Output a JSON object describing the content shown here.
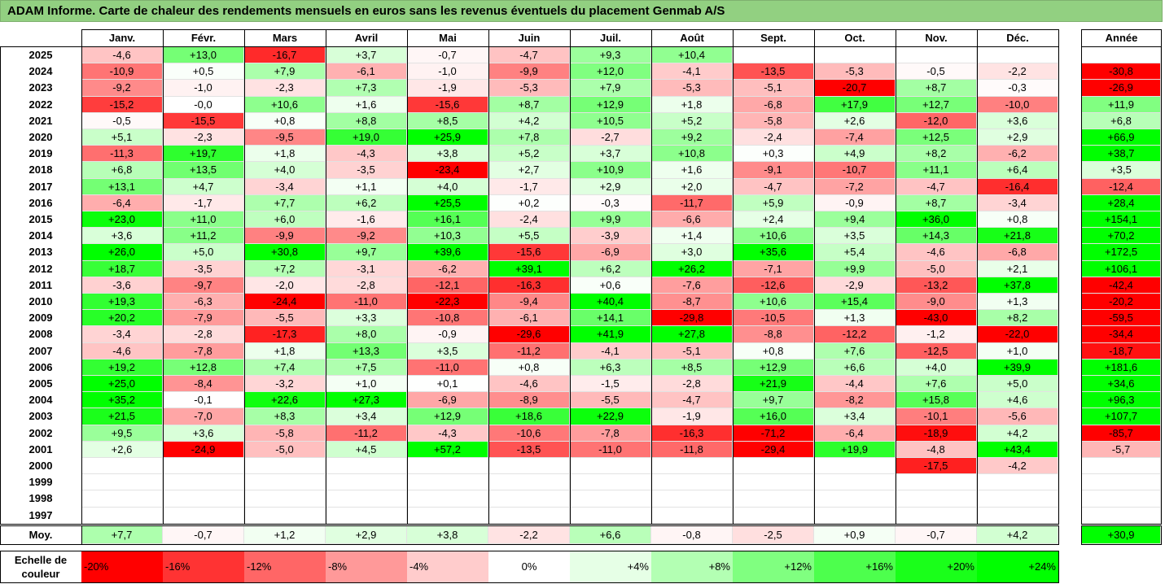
{
  "title": "ADAM Informe. Carte de chaleur des rendements mensuels en euros sans les revenus éventuels du placement Genmab A/S",
  "chart_data": {
    "type": "heatmap",
    "columns": [
      "Janv.",
      "Févr.",
      "Mars",
      "Avril",
      "Mai",
      "Juin",
      "Juil.",
      "Août",
      "Sept.",
      "Oct.",
      "Nov.",
      "Déc."
    ],
    "year_header": "Année",
    "rows": [
      {
        "year": "2025",
        "values": [
          "-4,6",
          "+13,0",
          "-16,7",
          "+3,7",
          "-0,7",
          "-4,7",
          "+9,3",
          "+10,4",
          "",
          "",
          "",
          ""
        ],
        "annual": ""
      },
      {
        "year": "2024",
        "values": [
          "-10,9",
          "+0,5",
          "+7,9",
          "-6,1",
          "-1,0",
          "-9,9",
          "+12,0",
          "-4,1",
          "-13,5",
          "-5,3",
          "-0,5",
          "-2,2"
        ],
        "annual": "-30,8"
      },
      {
        "year": "2023",
        "values": [
          "-9,2",
          "-1,0",
          "-2,3",
          "+7,3",
          "-1,9",
          "-5,3",
          "+7,9",
          "-5,3",
          "-5,1",
          "-20,7",
          "+8,7",
          "-0,3"
        ],
        "annual": "-26,9"
      },
      {
        "year": "2022",
        "values": [
          "-15,2",
          "-0,0",
          "+10,6",
          "+1,6",
          "-15,6",
          "+8,7",
          "+12,9",
          "+1,8",
          "-6,8",
          "+17,9",
          "+12,7",
          "-10,0"
        ],
        "annual": "+11,9"
      },
      {
        "year": "2021",
        "values": [
          "-0,5",
          "-15,5",
          "+0,8",
          "+8,8",
          "+8,5",
          "+4,2",
          "+10,5",
          "+5,2",
          "-5,8",
          "+2,6",
          "-12,0",
          "+3,6"
        ],
        "annual": "+6,8"
      },
      {
        "year": "2020",
        "values": [
          "+5,1",
          "-2,3",
          "-9,5",
          "+19,0",
          "+25,9",
          "+7,8",
          "-2,7",
          "+9,2",
          "-2,4",
          "-7,4",
          "+12,5",
          "+2,9"
        ],
        "annual": "+66,9"
      },
      {
        "year": "2019",
        "values": [
          "-11,3",
          "+19,7",
          "+1,8",
          "-4,3",
          "+3,8",
          "+5,2",
          "+3,7",
          "+10,8",
          "+0,3",
          "+4,9",
          "+8,2",
          "-6,2"
        ],
        "annual": "+38,7"
      },
      {
        "year": "2018",
        "values": [
          "+6,8",
          "+13,5",
          "+4,0",
          "-3,5",
          "-23,4",
          "+2,7",
          "+10,9",
          "+1,6",
          "-9,1",
          "-10,7",
          "+11,1",
          "+6,4"
        ],
        "annual": "+3,5"
      },
      {
        "year": "2017",
        "values": [
          "+13,1",
          "+4,7",
          "-3,4",
          "+1,1",
          "+4,0",
          "-1,7",
          "+2,9",
          "+2,0",
          "-4,7",
          "-7,2",
          "-4,7",
          "-16,4"
        ],
        "annual": "-12,4"
      },
      {
        "year": "2016",
        "values": [
          "-6,4",
          "-1,7",
          "+7,7",
          "+6,2",
          "+25,5",
          "+0,2",
          "-0,3",
          "-11,7",
          "+5,9",
          "-0,9",
          "+8,7",
          "-3,4"
        ],
        "annual": "+28,4"
      },
      {
        "year": "2015",
        "values": [
          "+23,0",
          "+11,0",
          "+6,0",
          "-1,6",
          "+16,1",
          "-2,4",
          "+9,9",
          "-6,6",
          "+2,4",
          "+9,4",
          "+36,0",
          "+0,8"
        ],
        "annual": "+154,1"
      },
      {
        "year": "2014",
        "values": [
          "+3,6",
          "+11,2",
          "-9,9",
          "-9,2",
          "+10,3",
          "+5,5",
          "-3,9",
          "+1,4",
          "+10,6",
          "+3,5",
          "+14,3",
          "+21,8"
        ],
        "annual": "+70,2"
      },
      {
        "year": "2013",
        "values": [
          "+26,0",
          "+5,0",
          "+30,8",
          "+9,7",
          "+39,6",
          "-15,6",
          "-6,9",
          "+3,0",
          "+35,6",
          "+5,4",
          "-4,6",
          "-6,8"
        ],
        "annual": "+172,5"
      },
      {
        "year": "2012",
        "values": [
          "+18,7",
          "-3,5",
          "+7,2",
          "-3,1",
          "-6,2",
          "+39,1",
          "+6,2",
          "+26,2",
          "-7,1",
          "+9,9",
          "-5,0",
          "+2,1"
        ],
        "annual": "+106,1"
      },
      {
        "year": "2011",
        "values": [
          "-3,6",
          "-9,7",
          "-2,0",
          "-2,8",
          "-12,1",
          "-16,3",
          "+0,6",
          "-7,6",
          "-12,6",
          "-2,9",
          "-13,2",
          "+37,8"
        ],
        "annual": "-42,4"
      },
      {
        "year": "2010",
        "values": [
          "+19,3",
          "-6,3",
          "-24,4",
          "-11,0",
          "-22,3",
          "-9,4",
          "+40,4",
          "-8,7",
          "+10,6",
          "+15,4",
          "-9,0",
          "+1,3"
        ],
        "annual": "-20,2"
      },
      {
        "year": "2009",
        "values": [
          "+20,2",
          "-7,9",
          "-5,5",
          "+3,3",
          "-10,8",
          "-6,1",
          "+14,1",
          "-29,8",
          "-10,5",
          "+1,3",
          "-43,0",
          "+8,2"
        ],
        "annual": "-59,5"
      },
      {
        "year": "2008",
        "values": [
          "-3,4",
          "-2,8",
          "-17,3",
          "+8,0",
          "-0,9",
          "-29,6",
          "+41,9",
          "+27,8",
          "-8,8",
          "-12,2",
          "-1,2",
          "-22,0"
        ],
        "annual": "-34,4"
      },
      {
        "year": "2007",
        "values": [
          "-4,6",
          "-7,8",
          "+1,8",
          "+13,3",
          "+3,5",
          "-11,2",
          "-4,1",
          "-5,1",
          "+0,8",
          "+7,6",
          "-12,5",
          "+1,0"
        ],
        "annual": "-18,7"
      },
      {
        "year": "2006",
        "values": [
          "+19,2",
          "+12,8",
          "+7,4",
          "+7,5",
          "-11,0",
          "+0,8",
          "+6,3",
          "+8,5",
          "+12,9",
          "+6,6",
          "+4,0",
          "+39,9"
        ],
        "annual": "+181,6"
      },
      {
        "year": "2005",
        "values": [
          "+25,0",
          "-8,4",
          "-3,2",
          "+1,0",
          "+0,1",
          "-4,6",
          "-1,5",
          "-2,8",
          "+21,9",
          "-4,4",
          "+7,6",
          "+5,0"
        ],
        "annual": "+34,6"
      },
      {
        "year": "2004",
        "values": [
          "+35,2",
          "-0,1",
          "+22,6",
          "+27,3",
          "-6,9",
          "-8,9",
          "-5,5",
          "-4,7",
          "+9,7",
          "-8,2",
          "+15,8",
          "+4,6"
        ],
        "annual": "+96,3"
      },
      {
        "year": "2003",
        "values": [
          "+21,5",
          "-7,0",
          "+8,3",
          "+3,4",
          "+12,9",
          "+18,6",
          "+22,9",
          "-1,9",
          "+16,0",
          "+3,4",
          "-10,1",
          "-5,6"
        ],
        "annual": "+107,7"
      },
      {
        "year": "2002",
        "values": [
          "+9,5",
          "+3,6",
          "-5,8",
          "-11,2",
          "-4,3",
          "-10,6",
          "-7,8",
          "-16,3",
          "-71,2",
          "-6,4",
          "-18,9",
          "+4,2"
        ],
        "annual": "-85,7"
      },
      {
        "year": "2001",
        "values": [
          "+2,6",
          "-24,9",
          "-5,0",
          "+4,5",
          "+57,2",
          "-13,5",
          "-11,0",
          "-11,8",
          "-29,4",
          "+19,9",
          "-4,8",
          "+43,4"
        ],
        "annual": "-5,7"
      },
      {
        "year": "2000",
        "values": [
          "",
          "",
          "",
          "",
          "",
          "",
          "",
          "",
          "",
          "",
          "-17,5",
          "-4,2"
        ],
        "annual": ""
      },
      {
        "year": "1999",
        "values": [
          "",
          "",
          "",
          "",
          "",
          "",
          "",
          "",
          "",
          "",
          "",
          ""
        ],
        "annual": ""
      },
      {
        "year": "1998",
        "values": [
          "",
          "",
          "",
          "",
          "",
          "",
          "",
          "",
          "",
          "",
          "",
          ""
        ],
        "annual": ""
      },
      {
        "year": "1997",
        "values": [
          "",
          "",
          "",
          "",
          "",
          "",
          "",
          "",
          "",
          "",
          "",
          ""
        ],
        "annual": ""
      }
    ],
    "average": {
      "label": "Moy.",
      "values": [
        "+7,7",
        "-0,7",
        "+1,2",
        "+2,9",
        "+3,8",
        "-2,2",
        "+6,6",
        "-0,8",
        "-2,5",
        "+0,9",
        "-0,7",
        "+4,2"
      ],
      "annual": "+30,9"
    },
    "color_scale": {
      "label": "Echelle de couleur",
      "steps": [
        {
          "label": "-20%",
          "color": "#ff0000"
        },
        {
          "label": "-16%",
          "color": "#ff3333"
        },
        {
          "label": "-12%",
          "color": "#ff6666"
        },
        {
          "label": "-8%",
          "color": "#ff9999"
        },
        {
          "label": "-4%",
          "color": "#ffcccc"
        },
        {
          "label": "0%",
          "color": "#ffffff"
        },
        {
          "label": "+4%",
          "color": "#e6ffe6"
        },
        {
          "label": "+8%",
          "color": "#b3ffb3"
        },
        {
          "label": "+12%",
          "color": "#80ff80"
        },
        {
          "label": "+16%",
          "color": "#4dff4d"
        },
        {
          "label": "+20%",
          "color": "#1aff1a"
        },
        {
          "label": "+24%",
          "color": "#00ff00"
        }
      ]
    }
  }
}
